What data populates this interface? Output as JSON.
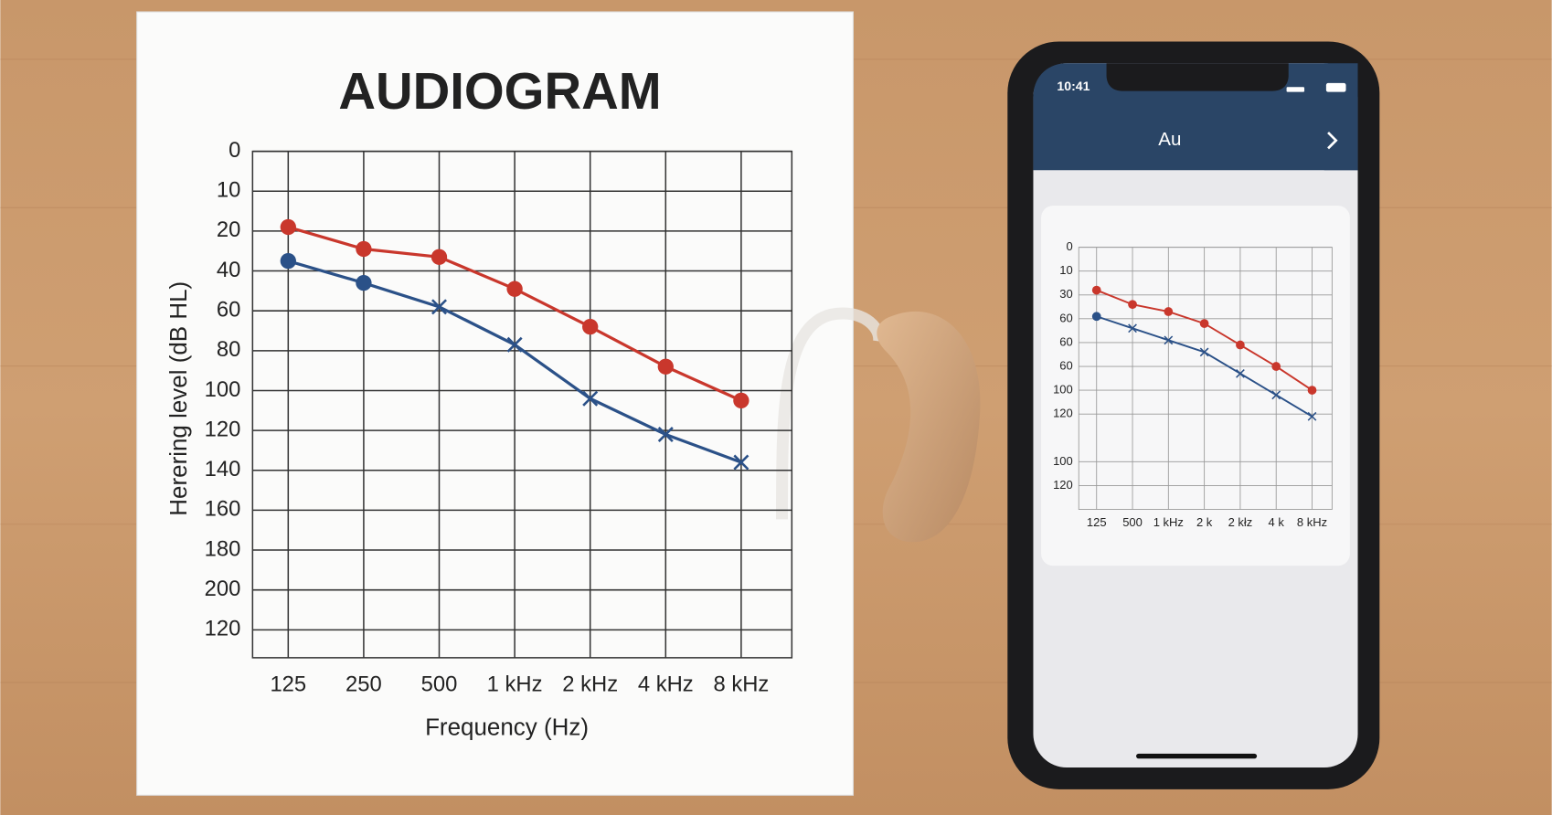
{
  "chart_data": [
    {
      "type": "line",
      "title": "AUDIOGRAM",
      "y_label": "Herering level (dB HL)",
      "x_label": "Frequency (Hz)",
      "categories": [
        "125",
        "250",
        "500",
        "1 kHz",
        "2 kHz",
        "4 kHz",
        "8 kHz"
      ],
      "ylim": [
        0,
        254
      ],
      "y_inverted": true,
      "grid": true,
      "yticks": [
        0,
        {
          "value": 20,
          "label": "10"
        },
        {
          "value": 40,
          "label": "20"
        },
        {
          "value": 60,
          "label": "40"
        },
        {
          "value": 80,
          "label": "60"
        },
        {
          "value": 100,
          "label": "80"
        },
        {
          "value": 120,
          "label": "100"
        },
        {
          "value": 140,
          "label": "120"
        },
        {
          "value": 160,
          "label": "140"
        },
        {
          "value": 180,
          "label": "160"
        },
        {
          "value": 200,
          "label": "180"
        },
        {
          "value": 220,
          "label": "200"
        },
        {
          "value": 240,
          "label": "120"
        }
      ],
      "series": [
        {
          "color": "#c9372c",
          "markers": [
            "o",
            "o",
            "o",
            "o",
            "o",
            "o",
            "o"
          ],
          "values": [
            38,
            49,
            53,
            69,
            88,
            108,
            125
          ]
        },
        {
          "color": "#2b5188",
          "markers": [
            "o",
            "o",
            "x",
            "x",
            "x",
            "x",
            "x"
          ],
          "values": [
            55,
            66,
            78,
            97,
            124,
            142,
            156
          ]
        }
      ]
    },
    {
      "type": "line",
      "categories": [
        "125",
        "500",
        "1 kHz",
        "2 k",
        "2 kłz",
        "4 k",
        "8 kHz"
      ],
      "ylim": [
        0,
        110
      ],
      "y_inverted": true,
      "grid": true,
      "yticks": [
        0,
        10,
        {
          "value": 20,
          "label": "30"
        },
        {
          "value": 30,
          "label": "60"
        },
        {
          "value": 40,
          "label": "60"
        },
        {
          "value": 50,
          "label": "60"
        },
        {
          "value": 60,
          "label": "100"
        },
        {
          "value": 70,
          "label": "120"
        },
        {
          "value": 90,
          "label": "100"
        },
        {
          "value": 100,
          "label": "120"
        }
      ],
      "series": [
        {
          "color": "#c9372c",
          "markers": [
            "o",
            "o",
            "o",
            "o",
            "o",
            "o",
            "o"
          ],
          "values": [
            18,
            24,
            27,
            32,
            41,
            50,
            60
          ]
        },
        {
          "color": "#2b5188",
          "markers": [
            "o",
            "x",
            "x",
            "x",
            "x",
            "x",
            "x"
          ],
          "values": [
            29,
            34,
            39,
            44,
            53,
            62,
            71
          ]
        }
      ]
    }
  ],
  "phone": {
    "time": "10:41",
    "title": "Au"
  }
}
